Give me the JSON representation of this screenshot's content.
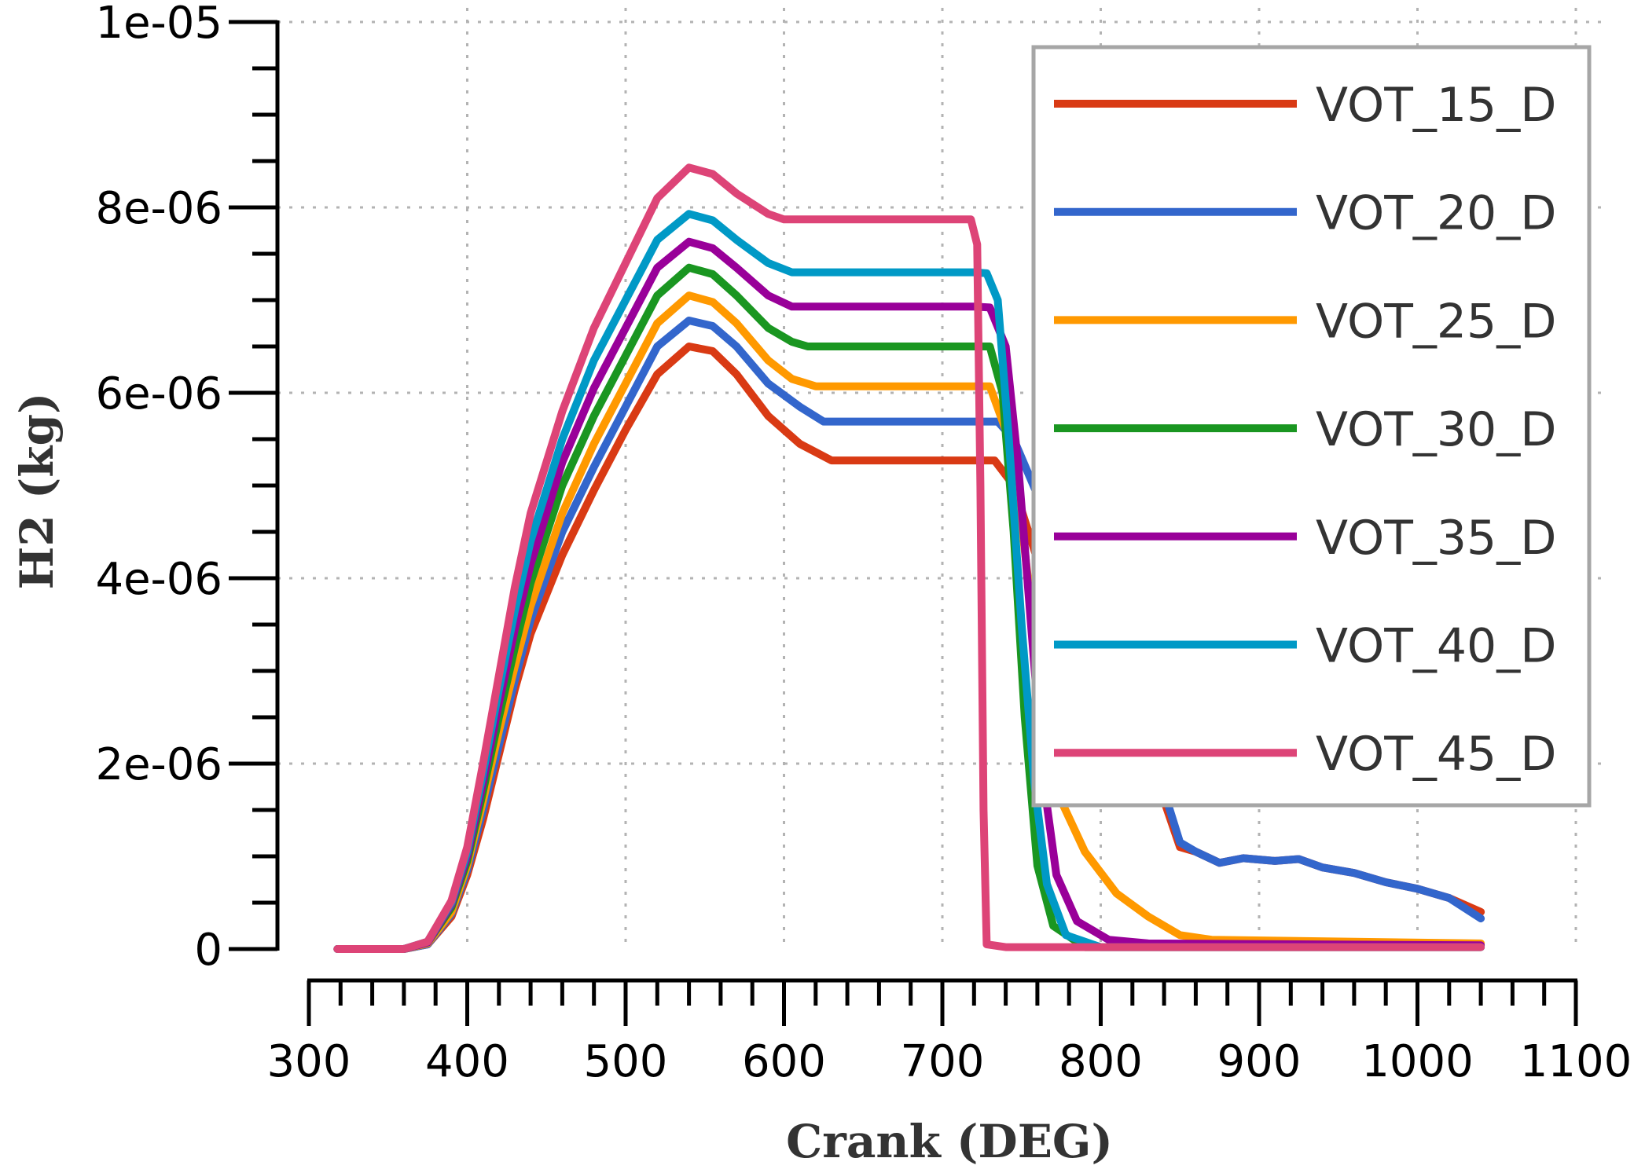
{
  "chart_data": {
    "type": "line",
    "xlabel": "Crank (DEG)",
    "ylabel": "H2 (kg)",
    "xlim": [
      300,
      1100
    ],
    "ylim": [
      0,
      1e-05
    ],
    "x_ticks": [
      {
        "value": 300,
        "label": "300"
      },
      {
        "value": 400,
        "label": "400"
      },
      {
        "value": 500,
        "label": "500"
      },
      {
        "value": 600,
        "label": "600"
      },
      {
        "value": 700,
        "label": "700"
      },
      {
        "value": 800,
        "label": "800"
      },
      {
        "value": 900,
        "label": "900"
      },
      {
        "value": 1000,
        "label": "1000"
      },
      {
        "value": 1100,
        "label": "1100"
      }
    ],
    "y_ticks": [
      {
        "value": 0,
        "label": "0"
      },
      {
        "value": 2e-06,
        "label": "2e-06"
      },
      {
        "value": 4e-06,
        "label": "4e-06"
      },
      {
        "value": 6e-06,
        "label": "6e-06"
      },
      {
        "value": 8e-06,
        "label": "8e-06"
      },
      {
        "value": 1e-05,
        "label": "1e-05"
      }
    ],
    "grid": true,
    "legend_position": "top-right",
    "series": [
      {
        "name": "VOT_15_D",
        "color": "#d93a14",
        "points": [
          [
            318,
            0
          ],
          [
            360,
            0
          ],
          [
            375,
            0.05
          ],
          [
            390,
            0.35
          ],
          [
            400,
            0.8
          ],
          [
            410,
            1.4
          ],
          [
            420,
            2.1
          ],
          [
            430,
            2.8
          ],
          [
            440,
            3.4
          ],
          [
            460,
            4.25
          ],
          [
            480,
            4.95
          ],
          [
            500,
            5.6
          ],
          [
            520,
            6.2
          ],
          [
            540,
            6.5
          ],
          [
            555,
            6.45
          ],
          [
            570,
            6.2
          ],
          [
            590,
            5.75
          ],
          [
            610,
            5.45
          ],
          [
            630,
            5.27
          ],
          [
            720,
            5.27
          ],
          [
            733,
            5.27
          ],
          [
            745,
            5.0
          ],
          [
            760,
            4.2
          ],
          [
            780,
            3.5
          ],
          [
            800,
            2.9
          ],
          [
            820,
            2.4
          ],
          [
            840,
            1.6
          ],
          [
            850,
            1.1
          ],
          [
            860,
            1.05
          ],
          [
            875,
            0.93
          ],
          [
            890,
            0.98
          ],
          [
            910,
            0.95
          ],
          [
            925,
            0.97
          ],
          [
            940,
            0.88
          ],
          [
            960,
            0.82
          ],
          [
            980,
            0.72
          ],
          [
            1000,
            0.65
          ],
          [
            1020,
            0.55
          ],
          [
            1040,
            0.4
          ]
        ]
      },
      {
        "name": "VOT_20_D",
        "color": "#3366cc",
        "points": [
          [
            318,
            0
          ],
          [
            360,
            0
          ],
          [
            375,
            0.05
          ],
          [
            390,
            0.38
          ],
          [
            400,
            0.85
          ],
          [
            410,
            1.5
          ],
          [
            420,
            2.2
          ],
          [
            430,
            2.9
          ],
          [
            440,
            3.55
          ],
          [
            460,
            4.5
          ],
          [
            480,
            5.2
          ],
          [
            500,
            5.85
          ],
          [
            520,
            6.5
          ],
          [
            540,
            6.78
          ],
          [
            555,
            6.72
          ],
          [
            570,
            6.5
          ],
          [
            590,
            6.1
          ],
          [
            610,
            5.85
          ],
          [
            625,
            5.69
          ],
          [
            720,
            5.69
          ],
          [
            735,
            5.69
          ],
          [
            745,
            5.5
          ],
          [
            760,
            4.9
          ],
          [
            780,
            4.1
          ],
          [
            800,
            3.2
          ],
          [
            820,
            2.5
          ],
          [
            840,
            1.7
          ],
          [
            850,
            1.15
          ],
          [
            860,
            1.05
          ],
          [
            875,
            0.93
          ],
          [
            890,
            0.98
          ],
          [
            910,
            0.95
          ],
          [
            925,
            0.97
          ],
          [
            940,
            0.88
          ],
          [
            960,
            0.82
          ],
          [
            980,
            0.72
          ],
          [
            1000,
            0.65
          ],
          [
            1020,
            0.55
          ],
          [
            1040,
            0.33
          ]
        ]
      },
      {
        "name": "VOT_25_D",
        "color": "#ff9900",
        "points": [
          [
            318,
            0
          ],
          [
            360,
            0
          ],
          [
            375,
            0.06
          ],
          [
            390,
            0.4
          ],
          [
            400,
            0.9
          ],
          [
            410,
            1.6
          ],
          [
            420,
            2.35
          ],
          [
            430,
            3.05
          ],
          [
            440,
            3.7
          ],
          [
            460,
            4.7
          ],
          [
            480,
            5.45
          ],
          [
            500,
            6.1
          ],
          [
            520,
            6.75
          ],
          [
            540,
            7.05
          ],
          [
            555,
            6.98
          ],
          [
            570,
            6.75
          ],
          [
            590,
            6.35
          ],
          [
            605,
            6.15
          ],
          [
            620,
            6.07
          ],
          [
            720,
            6.07
          ],
          [
            730,
            6.07
          ],
          [
            740,
            5.6
          ],
          [
            750,
            4.6
          ],
          [
            758,
            3.4
          ],
          [
            765,
            2.2
          ],
          [
            775,
            1.6
          ],
          [
            790,
            1.05
          ],
          [
            810,
            0.6
          ],
          [
            830,
            0.35
          ],
          [
            850,
            0.15
          ],
          [
            870,
            0.1
          ],
          [
            1040,
            0.06
          ]
        ]
      },
      {
        "name": "VOT_30_D",
        "color": "#1a9621",
        "points": [
          [
            318,
            0
          ],
          [
            360,
            0
          ],
          [
            375,
            0.07
          ],
          [
            390,
            0.45
          ],
          [
            400,
            0.95
          ],
          [
            410,
            1.7
          ],
          [
            420,
            2.5
          ],
          [
            430,
            3.25
          ],
          [
            440,
            3.95
          ],
          [
            460,
            5.0
          ],
          [
            480,
            5.75
          ],
          [
            500,
            6.4
          ],
          [
            520,
            7.05
          ],
          [
            540,
            7.35
          ],
          [
            555,
            7.28
          ],
          [
            570,
            7.05
          ],
          [
            590,
            6.7
          ],
          [
            605,
            6.55
          ],
          [
            615,
            6.5
          ],
          [
            720,
            6.5
          ],
          [
            730,
            6.5
          ],
          [
            738,
            6.0
          ],
          [
            745,
            4.5
          ],
          [
            752,
            2.5
          ],
          [
            760,
            0.9
          ],
          [
            770,
            0.25
          ],
          [
            790,
            0.02
          ],
          [
            1040,
            0.02
          ]
        ]
      },
      {
        "name": "VOT_35_D",
        "color": "#990099",
        "points": [
          [
            318,
            0
          ],
          [
            360,
            0
          ],
          [
            375,
            0.07
          ],
          [
            390,
            0.48
          ],
          [
            400,
            1.0
          ],
          [
            410,
            1.8
          ],
          [
            420,
            2.65
          ],
          [
            430,
            3.45
          ],
          [
            440,
            4.15
          ],
          [
            460,
            5.25
          ],
          [
            480,
            6.05
          ],
          [
            500,
            6.7
          ],
          [
            520,
            7.35
          ],
          [
            540,
            7.63
          ],
          [
            555,
            7.56
          ],
          [
            570,
            7.35
          ],
          [
            590,
            7.05
          ],
          [
            605,
            6.93
          ],
          [
            720,
            6.93
          ],
          [
            730,
            6.92
          ],
          [
            740,
            6.5
          ],
          [
            748,
            5.2
          ],
          [
            756,
            3.5
          ],
          [
            764,
            1.8
          ],
          [
            772,
            0.8
          ],
          [
            785,
            0.3
          ],
          [
            805,
            0.1
          ],
          [
            830,
            0.06
          ],
          [
            1040,
            0.04
          ]
        ]
      },
      {
        "name": "VOT_40_D",
        "color": "#0099c6",
        "points": [
          [
            318,
            0
          ],
          [
            360,
            0
          ],
          [
            375,
            0.08
          ],
          [
            390,
            0.5
          ],
          [
            400,
            1.05
          ],
          [
            410,
            1.9
          ],
          [
            420,
            2.8
          ],
          [
            430,
            3.65
          ],
          [
            440,
            4.4
          ],
          [
            460,
            5.5
          ],
          [
            480,
            6.35
          ],
          [
            500,
            7.0
          ],
          [
            520,
            7.65
          ],
          [
            540,
            7.93
          ],
          [
            555,
            7.86
          ],
          [
            570,
            7.65
          ],
          [
            590,
            7.4
          ],
          [
            605,
            7.3
          ],
          [
            720,
            7.3
          ],
          [
            728,
            7.29
          ],
          [
            735,
            7.0
          ],
          [
            742,
            5.5
          ],
          [
            750,
            3.5
          ],
          [
            758,
            1.8
          ],
          [
            766,
            0.7
          ],
          [
            778,
            0.15
          ],
          [
            800,
            0.02
          ],
          [
            1040,
            0.02
          ]
        ]
      },
      {
        "name": "VOT_45_D",
        "color": "#dd4477",
        "points": [
          [
            318,
            0
          ],
          [
            360,
            0
          ],
          [
            375,
            0.08
          ],
          [
            390,
            0.52
          ],
          [
            400,
            1.1
          ],
          [
            410,
            2.0
          ],
          [
            420,
            2.95
          ],
          [
            430,
            3.9
          ],
          [
            440,
            4.7
          ],
          [
            460,
            5.8
          ],
          [
            480,
            6.7
          ],
          [
            500,
            7.4
          ],
          [
            520,
            8.1
          ],
          [
            540,
            8.43
          ],
          [
            555,
            8.36
          ],
          [
            570,
            8.15
          ],
          [
            590,
            7.93
          ],
          [
            600,
            7.87
          ],
          [
            718,
            7.87
          ],
          [
            722,
            7.6
          ],
          [
            724,
            5.0
          ],
          [
            726,
            1.5
          ],
          [
            728,
            0.05
          ],
          [
            740,
            0.02
          ],
          [
            1040,
            0.02
          ]
        ]
      }
    ]
  }
}
